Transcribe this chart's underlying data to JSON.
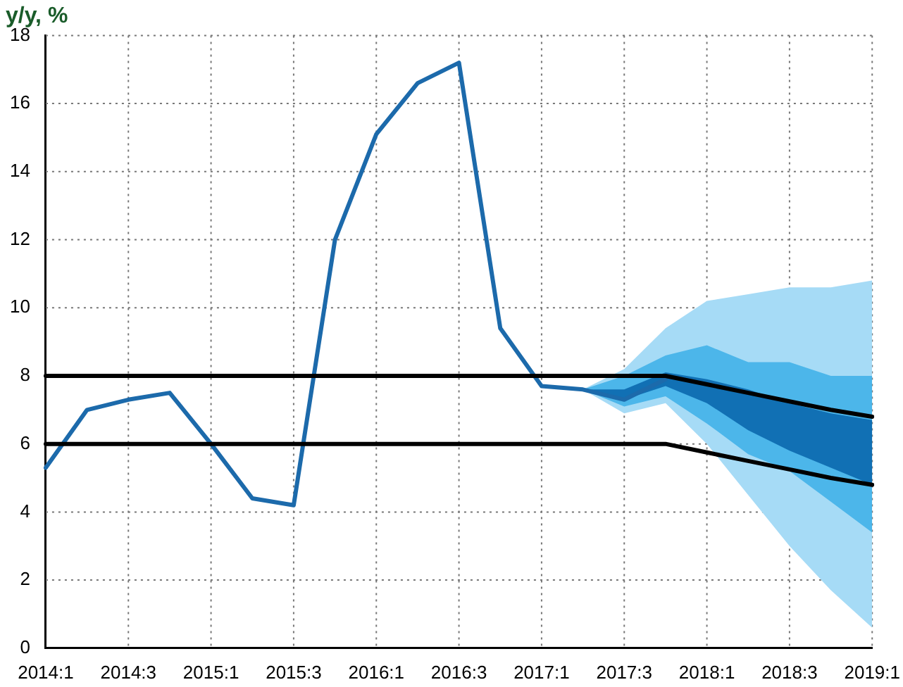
{
  "chart_data": {
    "type": "line",
    "title": "y/y, %",
    "categories": [
      "2014:1",
      null,
      "2014:3",
      null,
      "2015:1",
      null,
      "2015:3",
      null,
      "2016:1",
      null,
      "2016:3",
      null,
      "2017:1",
      null,
      "2017:3",
      null,
      "2018:1",
      null,
      "2018:3",
      null,
      "2019:1"
    ],
    "ylim": [
      0,
      18
    ],
    "yticks": [
      0,
      2,
      4,
      6,
      8,
      10,
      12,
      14,
      16,
      18
    ],
    "grid": true,
    "legend": false,
    "marker": "none",
    "series": [
      {
        "color": "#a6dbf6",
        "values": [
          null,
          null,
          null,
          null,
          null,
          null,
          null,
          null,
          null,
          null,
          null,
          null,
          null,
          null,
          null,
          null,
          null,
          null,
          null,
          null,
          null
        ],
        "lower": [
          null,
          null,
          null,
          null,
          null,
          null,
          null,
          null,
          null,
          null,
          null,
          null,
          null,
          7.6,
          6.9,
          7.2,
          6.0,
          4.5,
          3.0,
          1.7,
          0.6
        ],
        "upper": [
          null,
          null,
          null,
          null,
          null,
          null,
          null,
          null,
          null,
          null,
          null,
          null,
          null,
          7.6,
          8.2,
          9.4,
          10.2,
          10.4,
          10.6,
          10.6,
          10.8
        ]
      },
      {
        "color": "#4cb6ea",
        "values": [
          null,
          null,
          null,
          null,
          null,
          null,
          null,
          null,
          null,
          null,
          null,
          null,
          null,
          null,
          null,
          null,
          null,
          null,
          null,
          null,
          null
        ],
        "lower": [
          null,
          null,
          null,
          null,
          null,
          null,
          null,
          null,
          null,
          null,
          null,
          null,
          null,
          7.6,
          7.1,
          7.4,
          6.6,
          5.7,
          5.2,
          4.3,
          3.4
        ],
        "upper": [
          null,
          null,
          null,
          null,
          null,
          null,
          null,
          null,
          null,
          null,
          null,
          null,
          null,
          7.6,
          8.0,
          8.6,
          8.9,
          8.4,
          8.4,
          8.0,
          8.0
        ]
      },
      {
        "color": "#1170b4",
        "values": [
          null,
          null,
          null,
          null,
          null,
          null,
          null,
          null,
          null,
          null,
          null,
          null,
          null,
          null,
          null,
          null,
          null,
          null,
          null,
          null,
          null
        ],
        "lower": [
          null,
          null,
          null,
          null,
          null,
          null,
          null,
          null,
          null,
          null,
          null,
          null,
          null,
          7.6,
          7.3,
          7.7,
          7.2,
          6.4,
          5.8,
          5.3,
          4.8
        ],
        "upper": [
          null,
          null,
          null,
          null,
          null,
          null,
          null,
          null,
          null,
          null,
          null,
          null,
          null,
          7.6,
          7.6,
          8.1,
          7.9,
          7.6,
          7.2,
          6.9,
          6.7
        ]
      },
      {
        "color": "#1c6aab",
        "values": [
          5.3,
          7.0,
          7.3,
          7.5,
          6.0,
          4.4,
          4.2,
          12.0,
          15.1,
          16.6,
          17.2,
          9.4,
          7.7,
          7.6,
          7.3,
          7.9,
          null,
          null,
          null,
          null,
          null
        ]
      },
      {
        "color": "#000000",
        "values": [
          8,
          8,
          8,
          8,
          8,
          8,
          8,
          8,
          8,
          8,
          8,
          8,
          8,
          8,
          8,
          8,
          7.75,
          7.5,
          7.25,
          7.0,
          6.8
        ]
      },
      {
        "color": "#000000",
        "values": [
          6,
          6,
          6,
          6,
          6,
          6,
          6,
          6,
          6,
          6,
          6,
          6,
          6,
          6,
          6,
          6,
          5.75,
          5.5,
          5.25,
          5.0,
          4.8
        ]
      }
    ]
  }
}
